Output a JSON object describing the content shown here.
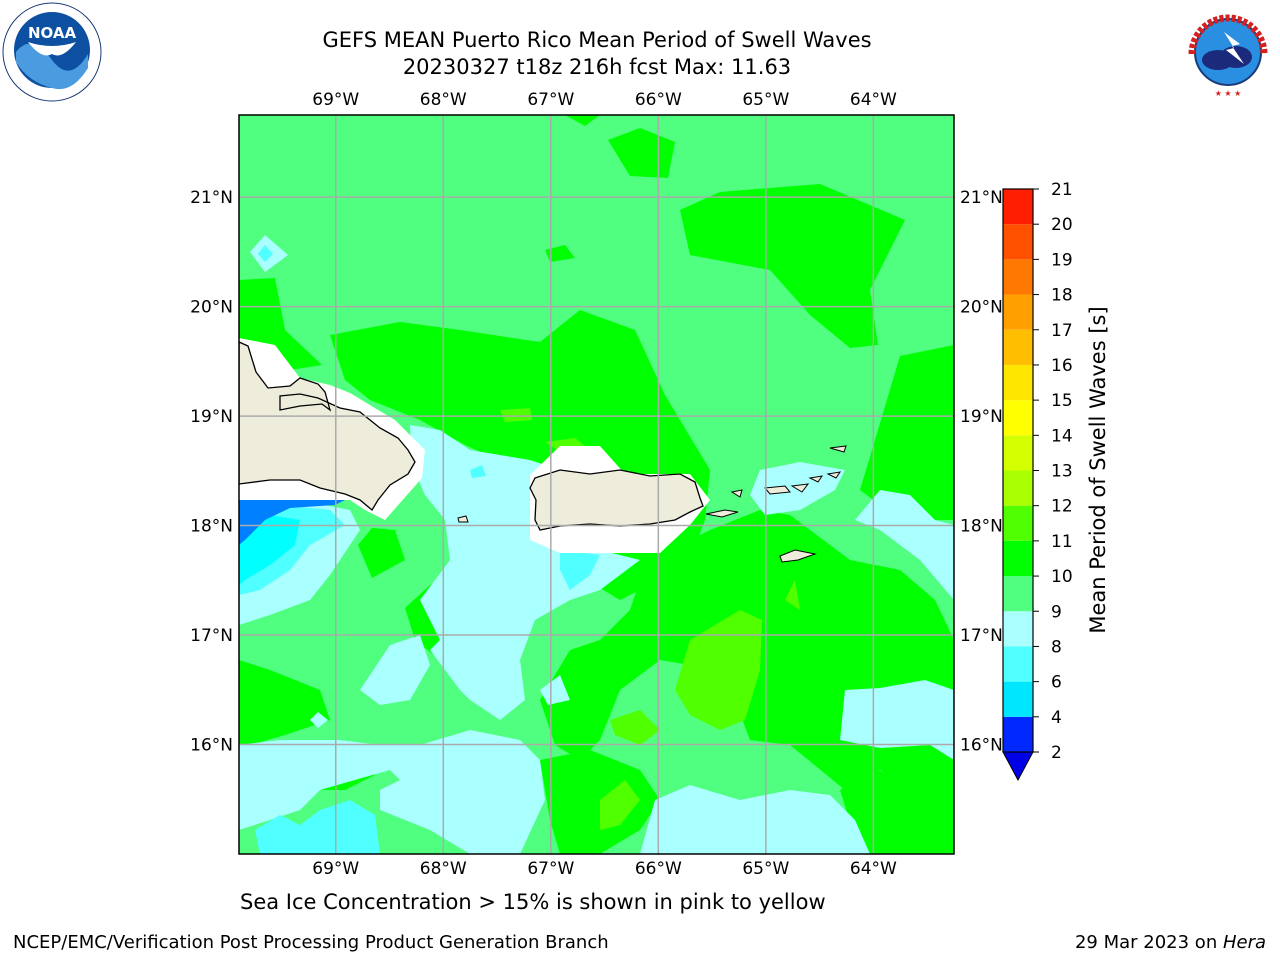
{
  "header": {
    "title_line1": "GEFS MEAN Puerto Rico Mean Period of Swell Waves",
    "title_line2": "20230327 t18z 216h fcst   Max: 11.63"
  },
  "logos": {
    "left": {
      "icon": "noaa-logo",
      "text": "NOAA"
    },
    "right": {
      "icon": "nws-logo",
      "text": "NATIONAL WEATHER SERVICE"
    }
  },
  "map": {
    "lon_labels": [
      "69°W",
      "68°W",
      "67°W",
      "66°W",
      "65°W",
      "64°W"
    ],
    "lat_labels": [
      "21°N",
      "20°N",
      "19°N",
      "18°N",
      "17°N",
      "16°N"
    ],
    "lon_values": [
      -69,
      -68,
      -67,
      -66,
      -65,
      -64
    ],
    "lat_values": [
      21,
      20,
      19,
      18,
      17,
      16
    ],
    "extent": {
      "lon_min": -69.9,
      "lon_max": -63.25,
      "lat_min": 15.0,
      "lat_max": 21.75
    },
    "land_color": "#eeecda",
    "grid_color": "#aaaaaa"
  },
  "colorbar": {
    "label": "Mean Period of Swell Waves [s]",
    "ticks": [
      "21",
      "20",
      "19",
      "18",
      "17",
      "16",
      "15",
      "14",
      "13",
      "12",
      "11",
      "10",
      "9",
      "8",
      "6",
      "4",
      "2"
    ],
    "levels": [
      2,
      4,
      6,
      8,
      9,
      10,
      11,
      12,
      13,
      14,
      15,
      16,
      17,
      18,
      19,
      20,
      21
    ],
    "colors": [
      "#0028ff",
      "#00e6ff",
      "#50ffff",
      "#aaffff",
      "#50ff80",
      "#00ff00",
      "#50ff00",
      "#aaff00",
      "#d4ff00",
      "#ffff00",
      "#ffe600",
      "#ffbe00",
      "#ffa000",
      "#ff7800",
      "#ff5000",
      "#ff1e00"
    ],
    "under_color": "#0000e6"
  },
  "footnote": "Sea Ice Concentration > 15% is shown in pink to yellow",
  "footer": {
    "left": "NCEP/EMC/Verification Post Processing Product Generation Branch",
    "right_date": "29 Mar 2023 on ",
    "right_host": "Hera"
  }
}
